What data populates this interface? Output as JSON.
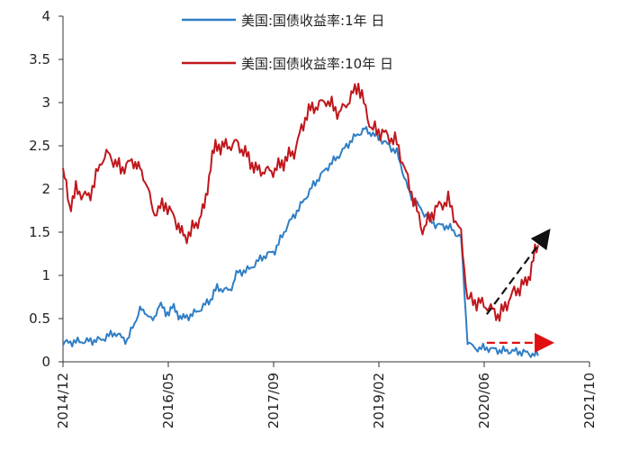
{
  "chart_data": {
    "type": "line",
    "xlim": [
      "2014-12",
      "2021-10"
    ],
    "ylim": [
      0,
      4
    ],
    "y_ticks": [
      "0",
      "0.5",
      "1",
      "1.5",
      "2",
      "2.5",
      "3",
      "3.5",
      "4"
    ],
    "x_ticks": [
      "2014/12",
      "2016/05",
      "2017/09",
      "2019/02",
      "2020/06",
      "2021/10"
    ],
    "grid": false,
    "legend_position": "top-center",
    "series": [
      {
        "name": "美国:国债收益率:1年 日",
        "color": "#2f7ec5",
        "points": [
          [
            "2014-12",
            0.22
          ],
          [
            "2015-02",
            0.24
          ],
          [
            "2015-04",
            0.25
          ],
          [
            "2015-06",
            0.27
          ],
          [
            "2015-08",
            0.35
          ],
          [
            "2015-10",
            0.26
          ],
          [
            "2015-12",
            0.62
          ],
          [
            "2016-01",
            0.55
          ],
          [
            "2016-02",
            0.48
          ],
          [
            "2016-03",
            0.66
          ],
          [
            "2016-04",
            0.57
          ],
          [
            "2016-05",
            0.62
          ],
          [
            "2016-06",
            0.55
          ],
          [
            "2016-07",
            0.5
          ],
          [
            "2016-09",
            0.58
          ],
          [
            "2016-11",
            0.72
          ],
          [
            "2016-12",
            0.85
          ],
          [
            "2017-02",
            0.82
          ],
          [
            "2017-03",
            1.03
          ],
          [
            "2017-05",
            1.08
          ],
          [
            "2017-07",
            1.22
          ],
          [
            "2017-09",
            1.3
          ],
          [
            "2017-11",
            1.6
          ],
          [
            "2018-01",
            1.82
          ],
          [
            "2018-03",
            2.06
          ],
          [
            "2018-05",
            2.25
          ],
          [
            "2018-07",
            2.4
          ],
          [
            "2018-09",
            2.58
          ],
          [
            "2018-11",
            2.7
          ],
          [
            "2018-12",
            2.65
          ],
          [
            "2019-02",
            2.55
          ],
          [
            "2019-04",
            2.43
          ],
          [
            "2019-06",
            1.95
          ],
          [
            "2019-08",
            1.75
          ],
          [
            "2019-10",
            1.6
          ],
          [
            "2019-12",
            1.58
          ],
          [
            "2020-02",
            1.45
          ],
          [
            "2020-03",
            0.22
          ],
          [
            "2020-04",
            0.17
          ],
          [
            "2020-06",
            0.17
          ],
          [
            "2020-08",
            0.14
          ],
          [
            "2020-10",
            0.13
          ],
          [
            "2020-12",
            0.11
          ],
          [
            "2021-02",
            0.07
          ]
        ]
      },
      {
        "name": "美国:国债收益率:10年 日",
        "color": "#c0171c",
        "points": [
          [
            "2014-12",
            2.2
          ],
          [
            "2015-01",
            1.8
          ],
          [
            "2015-02",
            2.0
          ],
          [
            "2015-04",
            1.92
          ],
          [
            "2015-06",
            2.35
          ],
          [
            "2015-07",
            2.38
          ],
          [
            "2015-09",
            2.2
          ],
          [
            "2015-11",
            2.3
          ],
          [
            "2015-12",
            2.25
          ],
          [
            "2016-01",
            2.05
          ],
          [
            "2016-02",
            1.75
          ],
          [
            "2016-04",
            1.85
          ],
          [
            "2016-06",
            1.6
          ],
          [
            "2016-07",
            1.42
          ],
          [
            "2016-09",
            1.6
          ],
          [
            "2016-10",
            1.78
          ],
          [
            "2016-11",
            2.3
          ],
          [
            "2016-12",
            2.5
          ],
          [
            "2017-03",
            2.55
          ],
          [
            "2017-06",
            2.2
          ],
          [
            "2017-09",
            2.25
          ],
          [
            "2017-12",
            2.4
          ],
          [
            "2018-02",
            2.85
          ],
          [
            "2018-05",
            3.05
          ],
          [
            "2018-07",
            2.9
          ],
          [
            "2018-10",
            3.2
          ],
          [
            "2018-12",
            2.7
          ],
          [
            "2019-02",
            2.65
          ],
          [
            "2019-04",
            2.55
          ],
          [
            "2019-06",
            2.05
          ],
          [
            "2019-08",
            1.55
          ],
          [
            "2019-10",
            1.8
          ],
          [
            "2019-12",
            1.9
          ],
          [
            "2020-02",
            1.5
          ],
          [
            "2020-03",
            0.7
          ],
          [
            "2020-05",
            0.65
          ],
          [
            "2020-08",
            0.55
          ],
          [
            "2020-10",
            0.8
          ],
          [
            "2020-12",
            0.92
          ],
          [
            "2021-01",
            1.1
          ],
          [
            "2021-02",
            1.35
          ]
        ]
      }
    ],
    "annotations": [
      {
        "type": "arrow",
        "color": "#111111",
        "from": [
          "2020-06",
          0.55
        ],
        "to": [
          "2021-03",
          1.45
        ]
      },
      {
        "type": "arrow",
        "color": "#e01010",
        "from": [
          "2020-06",
          0.22
        ],
        "to": [
          "2021-03",
          0.22
        ]
      }
    ]
  }
}
